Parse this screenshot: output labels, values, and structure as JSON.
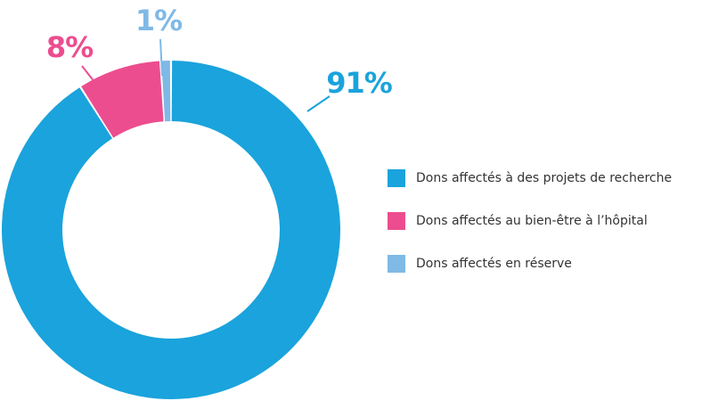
{
  "chart_data": {
    "type": "donut",
    "categories": [
      "Dons affectés à des projets de recherche",
      "Dons affectés au bien-être à l’hôpital",
      "Dons affectés en réserve"
    ],
    "values": [
      91,
      8,
      1
    ],
    "value_labels": [
      "91%",
      "8%",
      "1%"
    ],
    "colors": [
      "#1aa3dc",
      "#ec4d8f",
      "#7fb9e6"
    ],
    "legend": "right"
  }
}
